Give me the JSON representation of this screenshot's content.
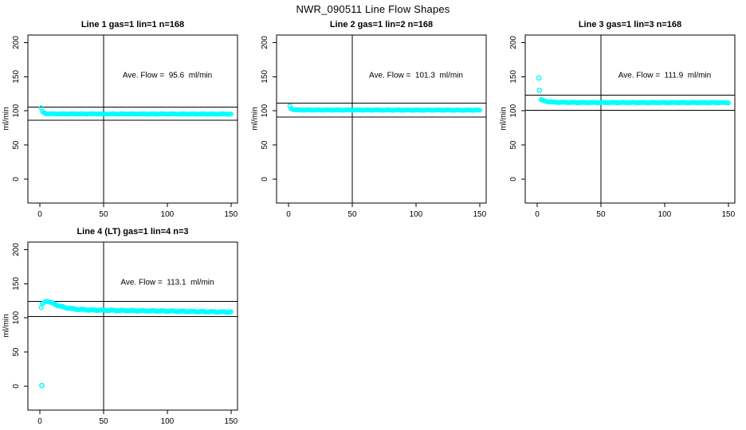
{
  "title": "NWR_090511  Line Flow Shapes",
  "axis": {
    "ylabel": "ml/min",
    "xticks": [
      0,
      50,
      100,
      150
    ],
    "yticks": [
      0,
      50,
      100,
      150,
      200
    ],
    "xlim": [
      -9.4,
      155.1
    ],
    "ylim": [
      -35,
      211
    ],
    "grid": false
  },
  "colors": {
    "marker": "#00ffff",
    "line": "#000000",
    "background": "#ffffff"
  },
  "chart_data": [
    {
      "type": "scatter",
      "title": "Line 1 gas=1 lin=1 n=168",
      "annotation": "Ave. Flow =  95.6  ml/min",
      "ave_flow_ml_min": 95.6,
      "n": 168,
      "vline_x": 50,
      "hlines": [
        105.2,
        86.0
      ],
      "x_start": 1,
      "x_end": 150,
      "noise": 0.5,
      "keypoints": [
        [
          1,
          104
        ],
        [
          2,
          99
        ],
        [
          3,
          97
        ],
        [
          5,
          96
        ],
        [
          8,
          95.5
        ],
        [
          150,
          95.3
        ]
      ],
      "outliers": []
    },
    {
      "type": "scatter",
      "title": "Line 2 gas=1 lin=2 n=168",
      "annotation": "Ave. Flow =  101.3  ml/min",
      "ave_flow_ml_min": 101.3,
      "n": 168,
      "vline_x": 50,
      "hlines": [
        111.4,
        91.2
      ],
      "x_start": 1,
      "x_end": 150,
      "noise": 0.5,
      "keypoints": [
        [
          1,
          107
        ],
        [
          2,
          103.5
        ],
        [
          3,
          102.3
        ],
        [
          5,
          101.6
        ],
        [
          8,
          101.3
        ],
        [
          150,
          101
        ]
      ],
      "outliers": []
    },
    {
      "type": "scatter",
      "title": "Line 3 gas=1 lin=3 n=168",
      "annotation": "Ave. Flow =  111.9  ml/min",
      "ave_flow_ml_min": 111.9,
      "n": 168,
      "vline_x": 50,
      "hlines": [
        123.1,
        100.7
      ],
      "x_start": 3,
      "x_end": 150,
      "noise": 0.5,
      "keypoints": [
        [
          3,
          116.5
        ],
        [
          4,
          115.5
        ],
        [
          6,
          114.3
        ],
        [
          9,
          113.3
        ],
        [
          15,
          112.6
        ],
        [
          30,
          112.2
        ],
        [
          150,
          112
        ]
      ],
      "outliers": [
        [
          1.3,
          148
        ],
        [
          1.8,
          130
        ]
      ]
    },
    {
      "type": "scatter",
      "title": "Line 4 (LT) gas=1 lin=4 n=3",
      "annotation": "Ave. Flow =  113.1  ml/min",
      "ave_flow_ml_min": 113.1,
      "n": 3,
      "vline_x": 50,
      "hlines": [
        124.4,
        101.8
      ],
      "x_start": 1,
      "x_end": 150,
      "noise": 0.9,
      "keypoints": [
        [
          1,
          115
        ],
        [
          2,
          120
        ],
        [
          4,
          124
        ],
        [
          6,
          124.5
        ],
        [
          8,
          123
        ],
        [
          10,
          121.5
        ],
        [
          13,
          119
        ],
        [
          16,
          117
        ],
        [
          20,
          115
        ],
        [
          25,
          113.5
        ],
        [
          30,
          112.5
        ],
        [
          40,
          111.5
        ],
        [
          55,
          111
        ],
        [
          75,
          110.5
        ],
        [
          100,
          110
        ],
        [
          130,
          109
        ],
        [
          150,
          108.5
        ]
      ],
      "outliers": [
        [
          1.5,
          1
        ]
      ]
    }
  ]
}
